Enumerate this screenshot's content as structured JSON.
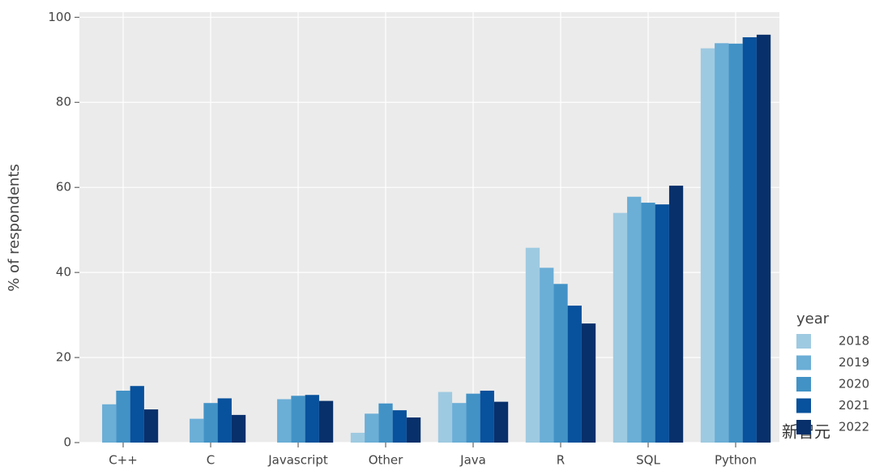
{
  "chart_data": {
    "type": "bar",
    "y_axis_label": "% of respondents",
    "legend_title": "year",
    "categories": [
      "C++",
      "C",
      "Javascript",
      "Other",
      "Java",
      "R",
      "SQL",
      "Python"
    ],
    "series": [
      {
        "name": "2018",
        "color": "#9ecae1",
        "values": [
          null,
          null,
          null,
          2.3,
          11.9,
          45.8,
          54.0,
          92.7
        ]
      },
      {
        "name": "2019",
        "color": "#6baed6",
        "values": [
          9.0,
          5.6,
          10.2,
          6.8,
          9.3,
          41.1,
          57.8,
          93.9
        ]
      },
      {
        "name": "2020",
        "color": "#4292c6",
        "values": [
          12.2,
          9.3,
          11.0,
          9.2,
          11.5,
          37.3,
          56.4,
          93.8
        ]
      },
      {
        "name": "2021",
        "color": "#08519c",
        "values": [
          13.3,
          10.4,
          11.2,
          7.6,
          12.2,
          32.2,
          56.0,
          95.3
        ]
      },
      {
        "name": "2022",
        "color": "#08306b",
        "values": [
          7.8,
          6.5,
          9.8,
          5.9,
          9.6,
          28.0,
          60.4,
          95.9
        ]
      }
    ],
    "ylim": [
      0,
      101.2
    ],
    "yticks": [
      0,
      20,
      40,
      60,
      80,
      100
    ],
    "grid": true,
    "legend_position": "right",
    "watermark": "新智元"
  }
}
